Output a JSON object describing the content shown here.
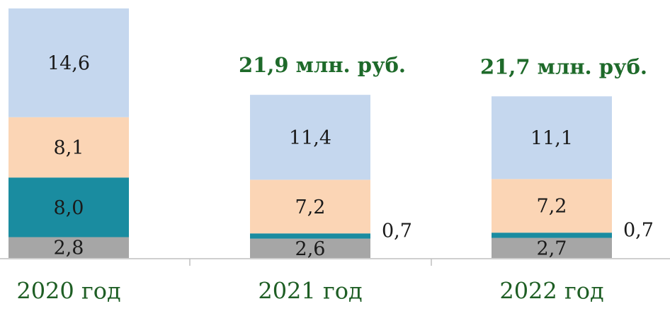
{
  "chart_data": {
    "type": "stacked_bar",
    "categories": [
      "2020 год",
      "2021 год",
      "2022 год"
    ],
    "series": [
      {
        "color": "#a6a6a6",
        "values": [
          2.8,
          2.6,
          2.7
        ],
        "value_labels": [
          "2,8",
          "2,6",
          "2,7"
        ]
      },
      {
        "color": "#1a8ca0",
        "values": [
          8.0,
          0.7,
          0.7
        ],
        "value_labels": [
          "8,0",
          "0,7",
          "0,7"
        ]
      },
      {
        "color": "#fbd5b5",
        "values": [
          8.1,
          7.2,
          7.2
        ],
        "value_labels": [
          "8,1",
          "7,2",
          "7,2"
        ]
      },
      {
        "color": "#c5d7ee",
        "values": [
          14.6,
          11.4,
          11.1
        ],
        "value_labels": [
          "14,6",
          "11,4",
          "11,1"
        ]
      }
    ],
    "annotations": [
      "21,9 млн. руб.",
      "21,7 млн. руб."
    ]
  }
}
